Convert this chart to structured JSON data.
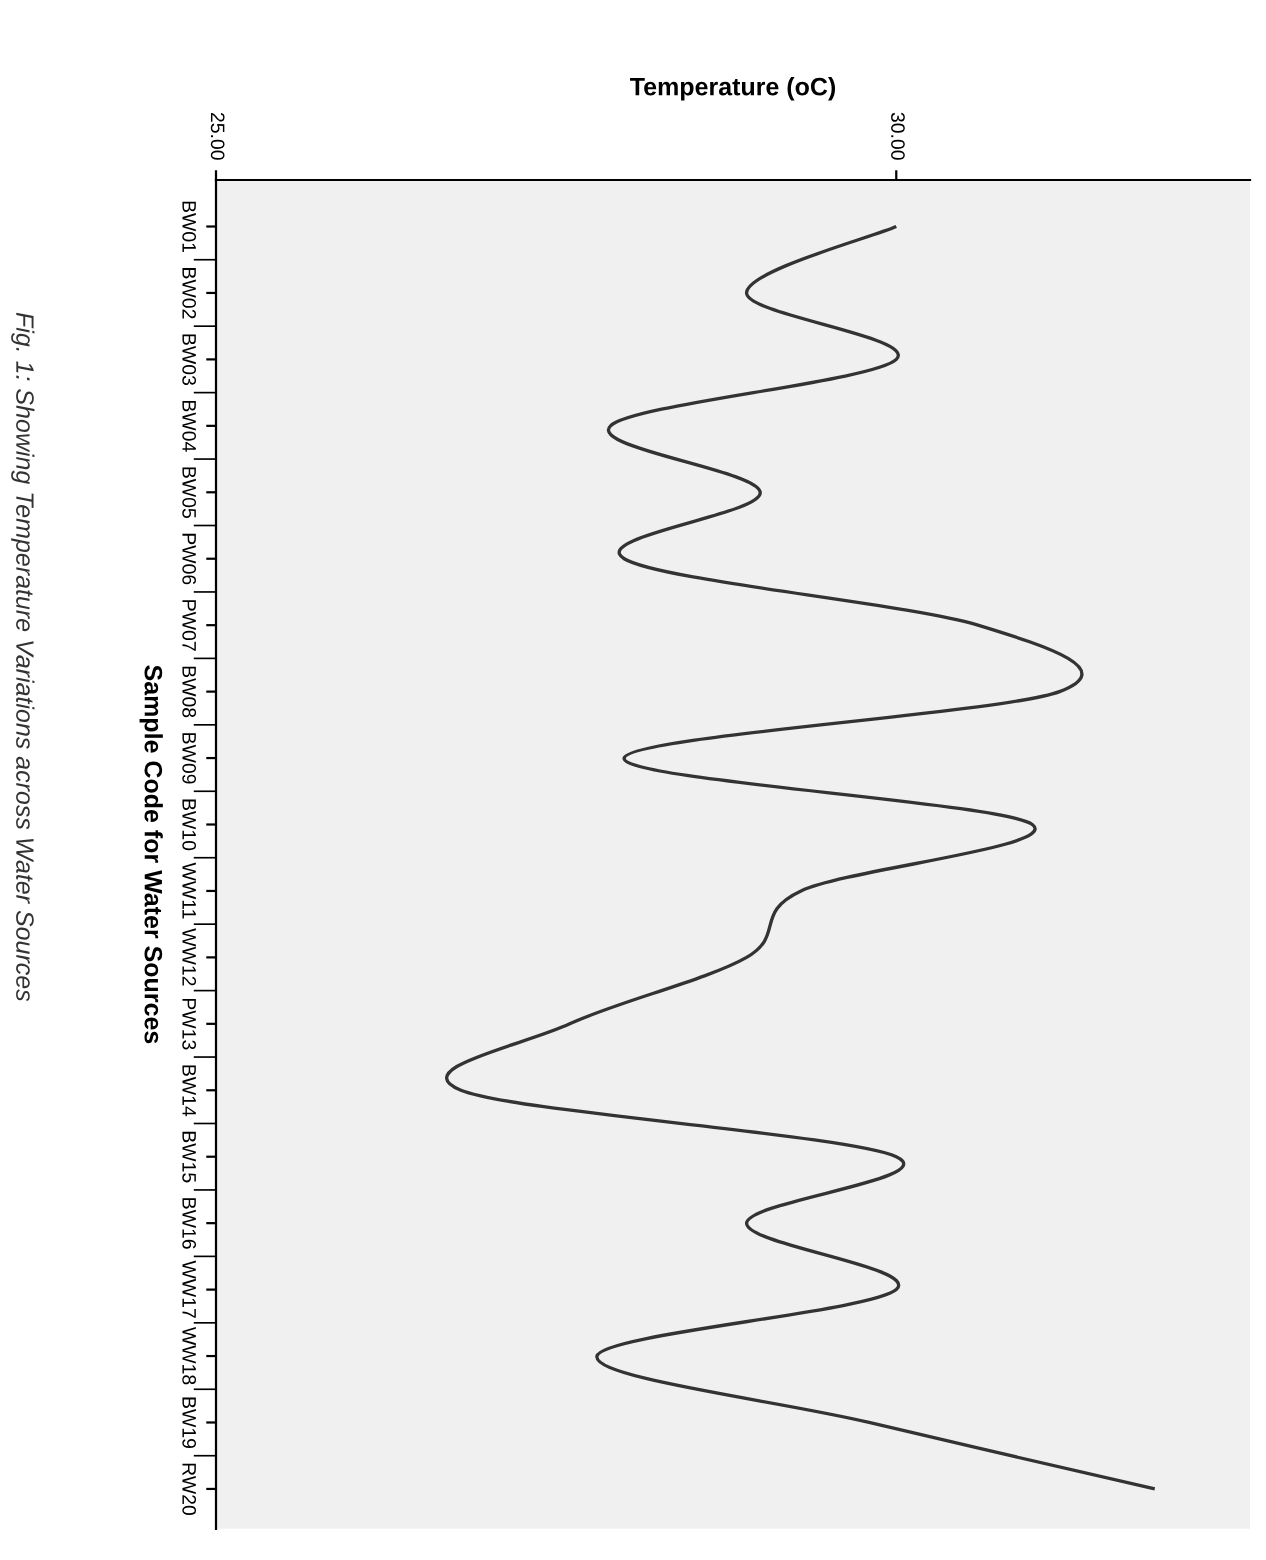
{
  "chart_data": {
    "type": "line",
    "orientation": "horizontal",
    "xlabel": "Temperature (oC)",
    "ylabel": "Sample Code for Water Sources",
    "annotations": [
      "Fig. 1: Showing Temperature Variations across Water Sources"
    ],
    "categories": [
      "BW01",
      "BW02",
      "BW03",
      "BW04",
      "BW05",
      "PW06",
      "PW07",
      "BW08",
      "BW09",
      "BW10",
      "WW11",
      "WW12",
      "PW13",
      "BW14",
      "BW15",
      "BW16",
      "WW17",
      "WW18",
      "BW19",
      "RW20"
    ],
    "values": [
      30.0,
      28.9,
      30.0,
      27.9,
      29.0,
      28.0,
      30.6,
      31.2,
      28.0,
      31.0,
      29.3,
      28.9,
      27.6,
      26.8,
      30.0,
      28.9,
      30.0,
      27.8,
      29.8,
      31.9
    ],
    "color": "#333333",
    "xlim": [
      25,
      32.6
    ],
    "xticks": [
      {
        "value": 25,
        "label": "25.00"
      },
      {
        "value": 30,
        "label": "30.00"
      }
    ],
    "grid": false,
    "marker": "none",
    "line_style": "solid"
  }
}
